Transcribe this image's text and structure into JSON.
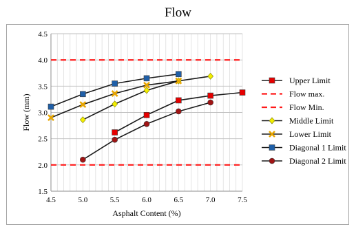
{
  "chart_data": {
    "type": "line",
    "title": "Flow",
    "xlabel": "Asphalt Content (%)",
    "ylabel": "Flow (mm)",
    "xlim": [
      4.5,
      7.5
    ],
    "ylim": [
      1.5,
      4.5
    ],
    "x_ticks": [
      "4.5",
      "5.0",
      "5.5",
      "6.0",
      "6.5",
      "7.0",
      "7.5"
    ],
    "y_ticks": [
      "1.5",
      "2.0",
      "2.5",
      "3.0",
      "3.5",
      "4.0",
      "4.5"
    ],
    "grid": true,
    "legend_position": "right",
    "series": [
      {
        "name": "Upper Limit",
        "color": "#e60000",
        "marker": "square",
        "line": "solid",
        "x": [
          5.5,
          6.0,
          6.5,
          7.0,
          7.5
        ],
        "y": [
          2.62,
          2.95,
          3.23,
          3.32,
          3.38
        ]
      },
      {
        "name": "Flow max.",
        "color": "#ff1a1a",
        "marker": "none",
        "line": "dashed",
        "x": [
          4.5,
          7.5
        ],
        "y": [
          4.0,
          4.0
        ]
      },
      {
        "name": "Flow Min.",
        "color": "#ff1a1a",
        "marker": "none",
        "line": "dashed",
        "x": [
          4.5,
          7.5
        ],
        "y": [
          2.0,
          2.0
        ]
      },
      {
        "name": "Middle Limit",
        "color": "#f2ee00",
        "marker": "diamond",
        "line": "solid",
        "x": [
          5.0,
          5.5,
          6.0,
          6.5,
          7.0
        ],
        "y": [
          2.86,
          3.16,
          3.42,
          3.6,
          3.69
        ]
      },
      {
        "name": "Lower Limit",
        "color": "#e8a600",
        "marker": "x",
        "line": "solid",
        "x": [
          4.5,
          5.0,
          5.5,
          6.0,
          6.5
        ],
        "y": [
          2.9,
          3.15,
          3.36,
          3.52,
          3.6
        ]
      },
      {
        "name": "Diagonal 1 Limit",
        "color": "#1f5fa8",
        "marker": "square",
        "line": "solid",
        "x": [
          4.5,
          5.0,
          5.5,
          6.0,
          6.5
        ],
        "y": [
          3.11,
          3.35,
          3.55,
          3.65,
          3.73
        ]
      },
      {
        "name": "Diagonal 2 Limit",
        "color": "#a01414",
        "marker": "circle",
        "line": "solid",
        "x": [
          5.0,
          5.5,
          6.0,
          6.5,
          7.0
        ],
        "y": [
          2.1,
          2.48,
          2.78,
          3.02,
          3.19
        ]
      }
    ]
  }
}
